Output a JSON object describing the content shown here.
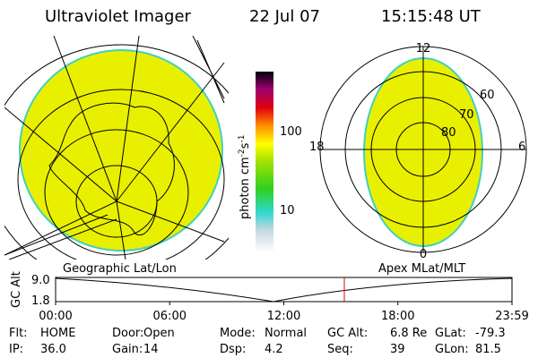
{
  "header": {
    "instrument": "Ultraviolet Imager",
    "date": "22 Jul 07",
    "time": "15:15:48 UT"
  },
  "colorbar": {
    "unit": [
      "photon cm",
      "-2",
      "s",
      "-1"
    ],
    "ticks": [
      "100",
      "10"
    ]
  },
  "polar_labels": {
    "mlt": [
      "12",
      "6",
      "0",
      "18"
    ],
    "mlat": [
      "60",
      "70",
      "80"
    ]
  },
  "captions": {
    "left": "Geographic Lat/Lon",
    "right": "Apex MLat/MLT"
  },
  "altitude_plot": {
    "ylabel": "GC Alt",
    "yticks": [
      "9.0",
      "1.8"
    ],
    "xticks": [
      "00:00",
      "06:00",
      "12:00",
      "18:00",
      "23:59"
    ]
  },
  "info": {
    "rows": [
      [
        {
          "label": "Flt:",
          "value": "HOME"
        },
        {
          "label": "Door:",
          "value": "Open"
        },
        {
          "label": "Mode:",
          "value": "Normal"
        },
        {
          "label": "GC Alt:",
          "value": "6.8 Re"
        },
        {
          "label": "GLat:",
          "value": "-79.3"
        }
      ],
      [
        {
          "label": "IP:",
          "value": "36.0"
        },
        {
          "label": "Gain:",
          "value": "14"
        },
        {
          "label": "Dsp:",
          "value": "4.2"
        },
        {
          "label": "Seq:",
          "value": "39"
        },
        {
          "label": "GLon:",
          "value": "81.5"
        }
      ]
    ]
  }
}
